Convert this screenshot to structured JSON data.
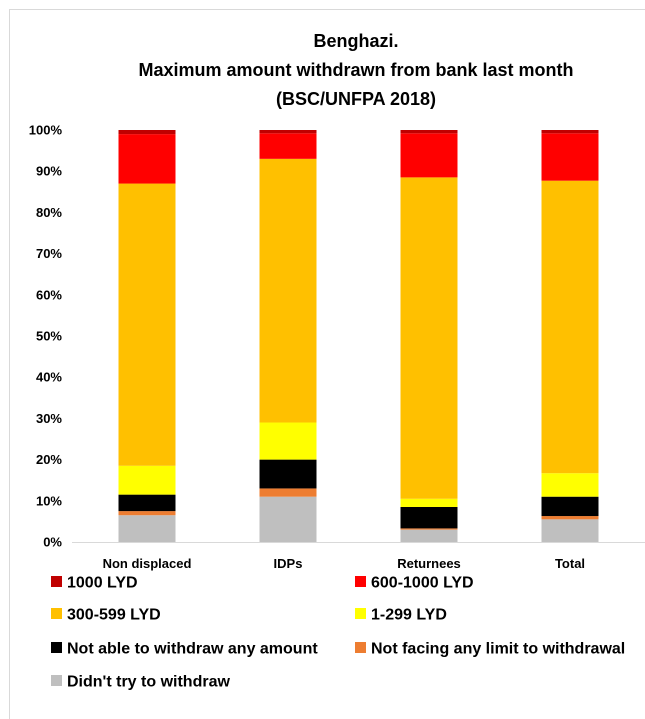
{
  "chart_data": {
    "type": "bar",
    "stacked": true,
    "title": [
      "Benghazi.",
      "Maximum amount withdrawn from bank last month",
      "(BSC/UNFPA 2018)"
    ],
    "categories": [
      "Non displaced",
      "IDPs",
      "Returnees",
      "Total"
    ],
    "yticks": [
      "0%",
      "10%",
      "20%",
      "30%",
      "40%",
      "50%",
      "60%",
      "70%",
      "80%",
      "90%",
      "100%"
    ],
    "ylim": [
      0,
      100
    ],
    "grid": false,
    "legend_position": "bottom",
    "series": [
      {
        "name": "Didn't try  to withdraw",
        "color": "#bfbfbf",
        "values": [
          6.5,
          11,
          3,
          5.5
        ]
      },
      {
        "name": "Not facing any limit to withdrawal",
        "color": "#ed7d31",
        "values": [
          1,
          2,
          0.3,
          0.8
        ]
      },
      {
        "name": "Not able to withdraw any amount",
        "color": "#000000",
        "values": [
          4,
          7,
          5.2,
          4.7
        ]
      },
      {
        "name": "1-299 LYD",
        "color": "#ffff00",
        "values": [
          7,
          9,
          2,
          5.7
        ]
      },
      {
        "name": "300-599 LYD",
        "color": "#ffc000",
        "values": [
          68.5,
          64,
          78,
          71
        ]
      },
      {
        "name": "600-1000 LYD",
        "color": "#ff0000",
        "values": [
          12,
          6.2,
          10.7,
          11.5
        ]
      },
      {
        "name": "1000 LYD",
        "color": "#c00000",
        "values": [
          1,
          0.8,
          0.8,
          0.8
        ]
      }
    ]
  },
  "legend_rows": [
    [
      {
        "series": 6
      },
      {
        "series": 5
      }
    ],
    [
      {
        "series": 4
      },
      {
        "series": 3
      }
    ],
    [
      {
        "series": 2
      },
      {
        "series": 1
      }
    ],
    [
      {
        "series": 0
      }
    ]
  ]
}
